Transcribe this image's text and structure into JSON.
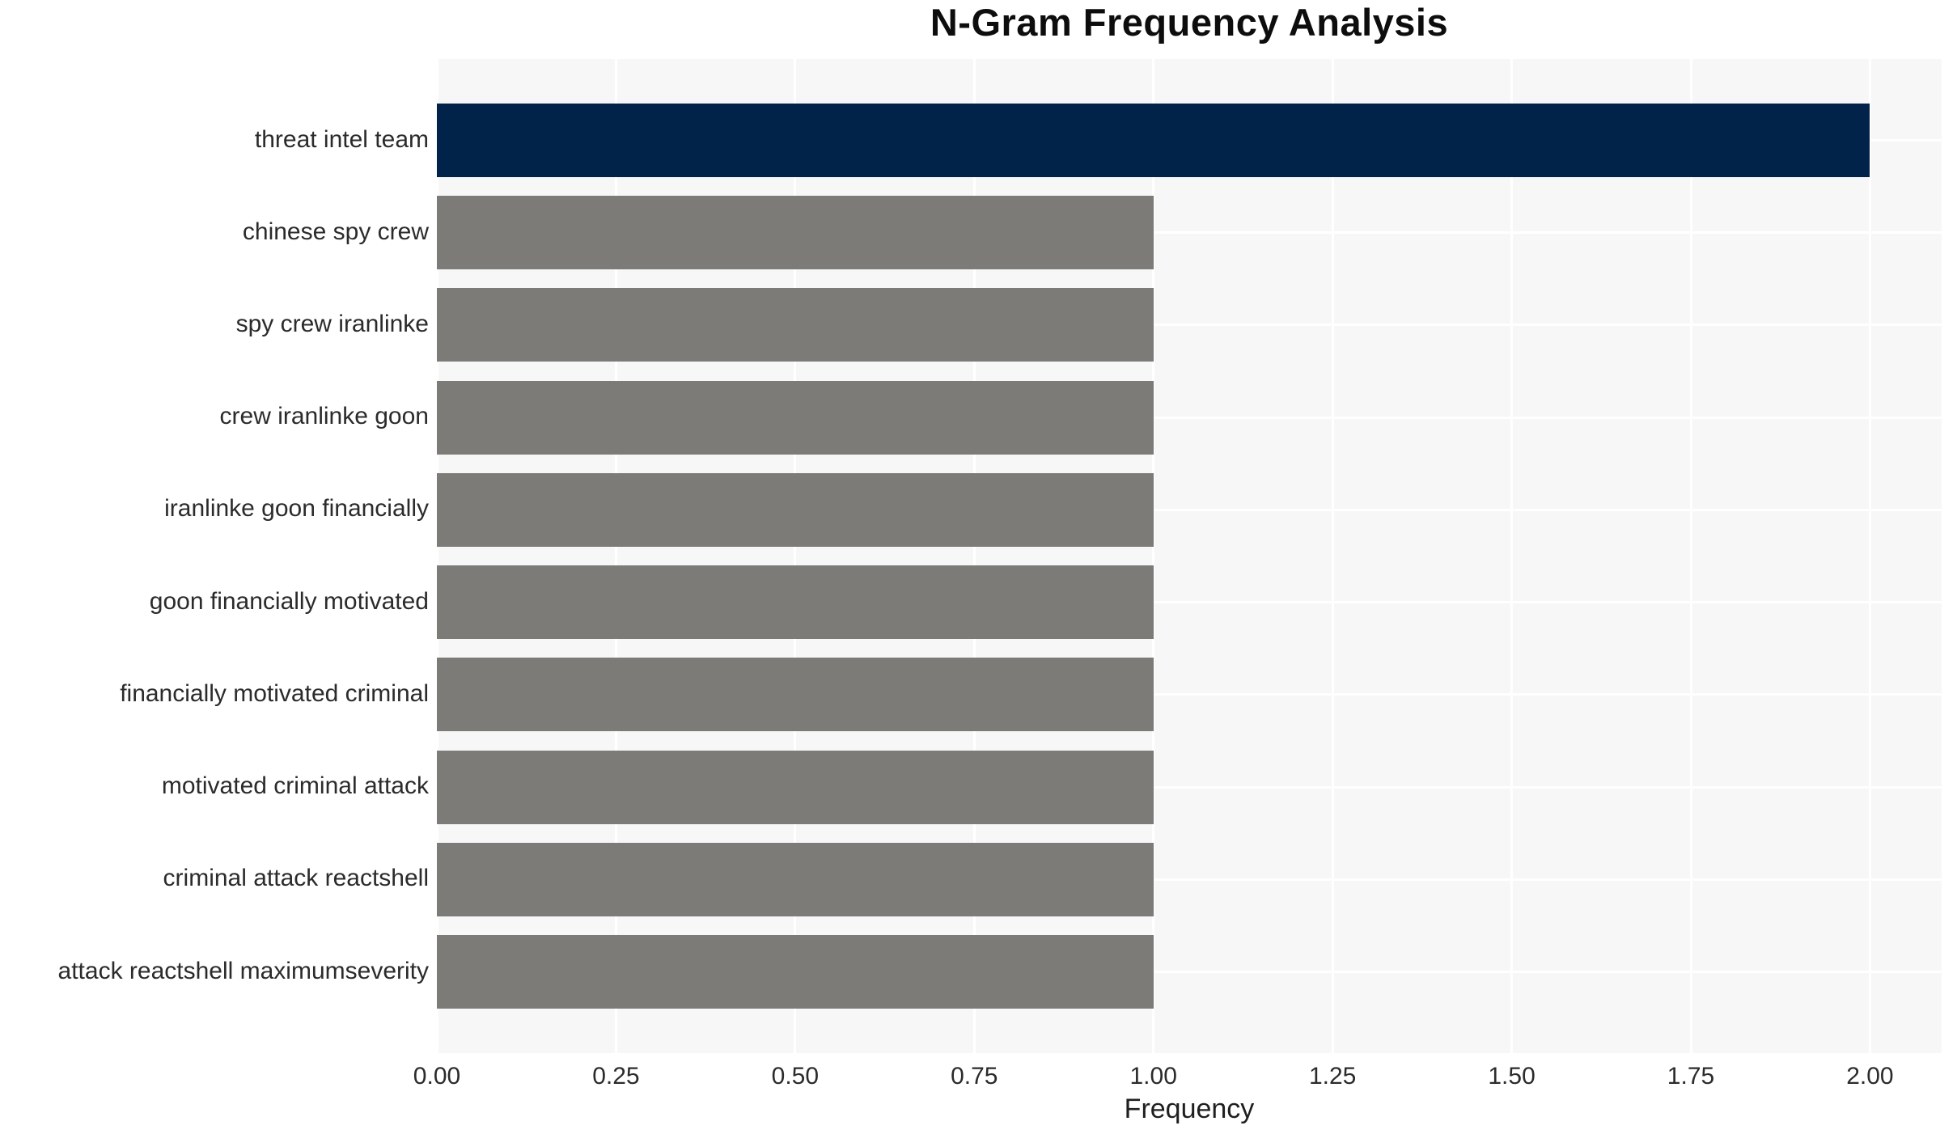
{
  "chart_data": {
    "type": "bar",
    "orientation": "horizontal",
    "title": "N-Gram Frequency Analysis",
    "xlabel": "Frequency",
    "ylabel": "",
    "categories": [
      "threat intel team",
      "chinese spy crew",
      "spy crew iranlinke",
      "crew iranlinke goon",
      "iranlinke goon financially",
      "goon financially motivated",
      "financially motivated criminal",
      "motivated criminal attack",
      "criminal attack reactshell",
      "attack reactshell maximumseverity"
    ],
    "values": [
      2,
      1,
      1,
      1,
      1,
      1,
      1,
      1,
      1,
      1
    ],
    "xlim": [
      0,
      2.1
    ],
    "xticks": [
      0,
      0.25,
      0.5,
      0.75,
      1.0,
      1.25,
      1.5,
      1.75,
      2.0
    ],
    "xtick_labels": [
      "0.00",
      "0.25",
      "0.50",
      "0.75",
      "1.00",
      "1.25",
      "1.50",
      "1.75",
      "2.00"
    ],
    "grid": "on",
    "legend": "none",
    "colors": {
      "bar_highlight": "#022349",
      "bar_default": "#7c7b77",
      "plot_background": "#f7f7f7",
      "grid_line": "#ffffff",
      "tick_text": "#2b2b2b",
      "title_text": "#0d0d0d"
    }
  }
}
